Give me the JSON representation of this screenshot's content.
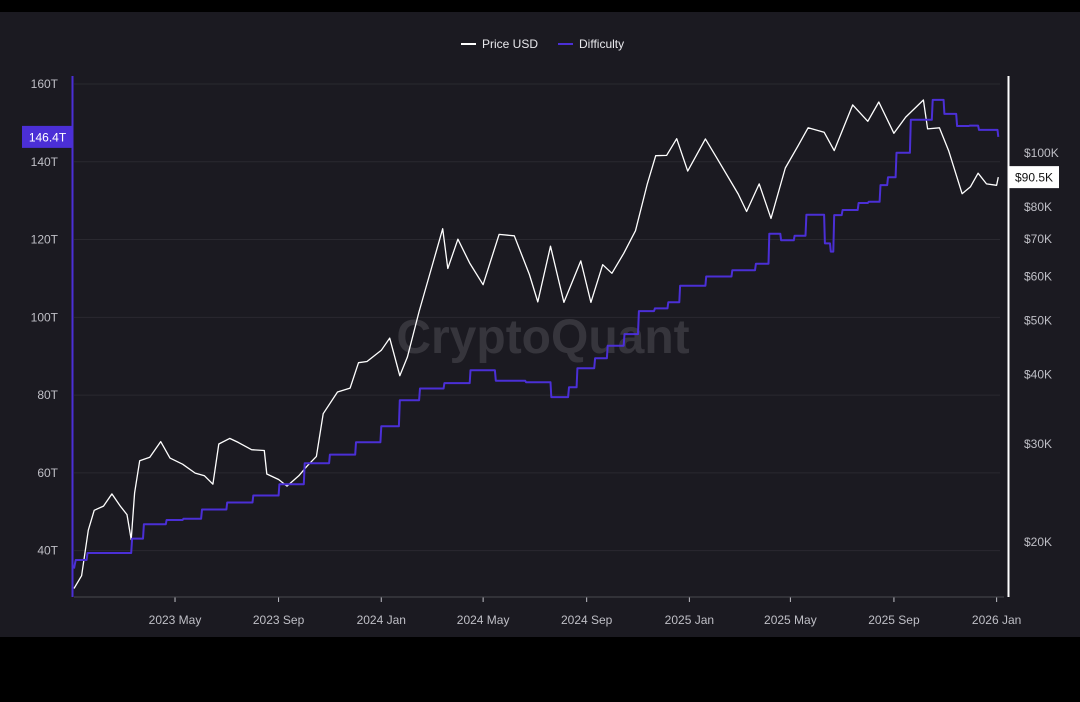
{
  "colors": {
    "background": "#1b1a21",
    "outer": "#000000",
    "price": "#ffffff",
    "difficulty": "#4b2fd6",
    "grid": "#2a2930",
    "axis_text": "#bfbfc6",
    "watermark": "#3a3940"
  },
  "watermark": "CryptoQuant",
  "chart_data": {
    "type": "line",
    "legend": {
      "position": "top-center",
      "items": [
        "Price USD",
        "Difficulty"
      ]
    },
    "x_ticks": [
      "2023 May",
      "2023 Sep",
      "2024 Jan",
      "2024 May",
      "2024 Sep",
      "2025 Jan",
      "2025 May",
      "2025 Sep",
      "2026 Jan"
    ],
    "x_tick_dates": [
      "2023-05-01",
      "2023-09-01",
      "2024-01-01",
      "2024-05-01",
      "2024-09-01",
      "2025-01-01",
      "2025-05-01",
      "2025-09-01",
      "2026-01-01"
    ],
    "x_range": [
      "2023-01-01",
      "2026-01-05"
    ],
    "left_axis": {
      "series": "Difficulty",
      "ticks": [
        "160T",
        "140T",
        "120T",
        "100T",
        "80T",
        "60T",
        "40T"
      ],
      "tick_values": [
        160,
        140,
        120,
        100,
        80,
        60,
        40
      ],
      "range": [
        30,
        162
      ],
      "unit": "T",
      "current_label": "146.4T",
      "current_value": 146.4
    },
    "right_axis": {
      "series": "Price USD",
      "scale": "log",
      "ticks": [
        "$100K",
        "$80K",
        "$70K",
        "$60K",
        "$50K",
        "$40K",
        "$30K",
        "$20K"
      ],
      "tick_values": [
        100000,
        80000,
        70000,
        60000,
        50000,
        40000,
        30000,
        20000
      ],
      "range": [
        16000,
        125000
      ],
      "current_label": "$90.5K",
      "current_value": 90500
    },
    "grid": true,
    "series": [
      {
        "name": "Price USD",
        "axis": "right",
        "points": [
          [
            "2023-01-01",
            16500
          ],
          [
            "2023-01-10",
            17400
          ],
          [
            "2023-01-18",
            21000
          ],
          [
            "2023-01-25",
            22800
          ],
          [
            "2023-02-05",
            23200
          ],
          [
            "2023-02-15",
            24400
          ],
          [
            "2023-02-25",
            23200
          ],
          [
            "2023-03-05",
            22400
          ],
          [
            "2023-03-10",
            20200
          ],
          [
            "2023-03-14",
            24500
          ],
          [
            "2023-03-20",
            28000
          ],
          [
            "2023-04-01",
            28400
          ],
          [
            "2023-04-14",
            30300
          ],
          [
            "2023-04-25",
            28300
          ],
          [
            "2023-05-10",
            27600
          ],
          [
            "2023-05-25",
            26600
          ],
          [
            "2023-06-05",
            26300
          ],
          [
            "2023-06-15",
            25400
          ],
          [
            "2023-06-22",
            30000
          ],
          [
            "2023-07-05",
            30700
          ],
          [
            "2023-07-15",
            30200
          ],
          [
            "2023-07-31",
            29300
          ],
          [
            "2023-08-15",
            29200
          ],
          [
            "2023-08-18",
            26500
          ],
          [
            "2023-09-01",
            25900
          ],
          [
            "2023-09-11",
            25200
          ],
          [
            "2023-09-25",
            26300
          ],
          [
            "2023-10-05",
            27400
          ],
          [
            "2023-10-16",
            28500
          ],
          [
            "2023-10-24",
            34000
          ],
          [
            "2023-11-10",
            37200
          ],
          [
            "2023-11-25",
            37800
          ],
          [
            "2023-12-05",
            42000
          ],
          [
            "2023-12-15",
            42200
          ],
          [
            "2024-01-01",
            44200
          ],
          [
            "2024-01-11",
            46500
          ],
          [
            "2024-01-23",
            39800
          ],
          [
            "2024-02-01",
            43000
          ],
          [
            "2024-02-15",
            51900
          ],
          [
            "2024-03-01",
            62400
          ],
          [
            "2024-03-14",
            73100
          ],
          [
            "2024-03-20",
            62000
          ],
          [
            "2024-04-01",
            70000
          ],
          [
            "2024-04-15",
            63400
          ],
          [
            "2024-05-01",
            58000
          ],
          [
            "2024-05-20",
            71400
          ],
          [
            "2024-06-07",
            71000
          ],
          [
            "2024-06-25",
            60500
          ],
          [
            "2024-07-05",
            54000
          ],
          [
            "2024-07-20",
            68000
          ],
          [
            "2024-08-05",
            53900
          ],
          [
            "2024-08-25",
            64000
          ],
          [
            "2024-09-06",
            53900
          ],
          [
            "2024-09-20",
            63000
          ],
          [
            "2024-10-01",
            60800
          ],
          [
            "2024-10-15",
            66000
          ],
          [
            "2024-10-29",
            72500
          ],
          [
            "2024-11-12",
            88000
          ],
          [
            "2024-11-22",
            98900
          ],
          [
            "2024-12-05",
            99000
          ],
          [
            "2024-12-17",
            106100
          ],
          [
            "2024-12-30",
            92800
          ],
          [
            "2025-01-20",
            106000
          ],
          [
            "2025-02-03",
            97800
          ],
          [
            "2025-02-28",
            84400
          ],
          [
            "2025-03-10",
            78500
          ],
          [
            "2025-03-25",
            88000
          ],
          [
            "2025-04-08",
            76300
          ],
          [
            "2025-04-25",
            94000
          ],
          [
            "2025-05-10",
            103000
          ],
          [
            "2025-05-22",
            111000
          ],
          [
            "2025-06-10",
            109000
          ],
          [
            "2025-06-22",
            101000
          ],
          [
            "2025-07-14",
            122000
          ],
          [
            "2025-08-01",
            114000
          ],
          [
            "2025-08-14",
            123500
          ],
          [
            "2025-09-01",
            108500
          ],
          [
            "2025-09-15",
            116000
          ],
          [
            "2025-10-06",
            124500
          ],
          [
            "2025-10-11",
            110500
          ],
          [
            "2025-10-25",
            111000
          ],
          [
            "2025-11-05",
            101000
          ],
          [
            "2025-11-21",
            84500
          ],
          [
            "2025-12-01",
            87000
          ],
          [
            "2025-12-10",
            92000
          ],
          [
            "2025-12-20",
            88000
          ],
          [
            "2026-01-01",
            87500
          ],
          [
            "2026-01-03",
            90500
          ]
        ]
      },
      {
        "name": "Difficulty",
        "axis": "left",
        "points": [
          [
            "2023-01-01",
            35.4
          ],
          [
            "2023-01-03",
            37.6
          ],
          [
            "2023-01-16",
            37.6
          ],
          [
            "2023-01-17",
            39.4
          ],
          [
            "2023-03-10",
            39.4
          ],
          [
            "2023-03-11",
            43.1
          ],
          [
            "2023-03-24",
            43.1
          ],
          [
            "2023-03-25",
            46.8
          ],
          [
            "2023-04-20",
            46.8
          ],
          [
            "2023-04-21",
            47.9
          ],
          [
            "2023-05-10",
            47.9
          ],
          [
            "2023-05-11",
            48.2
          ],
          [
            "2023-06-01",
            48.2
          ],
          [
            "2023-06-02",
            50.6
          ],
          [
            "2023-07-01",
            50.6
          ],
          [
            "2023-07-02",
            52.4
          ],
          [
            "2023-08-01",
            52.4
          ],
          [
            "2023-08-02",
            54.2
          ],
          [
            "2023-09-01",
            54.2
          ],
          [
            "2023-09-02",
            57.1
          ],
          [
            "2023-10-01",
            57.1
          ],
          [
            "2023-10-02",
            62.5
          ],
          [
            "2023-10-31",
            62.5
          ],
          [
            "2023-11-01",
            64.7
          ],
          [
            "2023-12-01",
            64.7
          ],
          [
            "2023-12-02",
            67.9
          ],
          [
            "2023-12-31",
            67.9
          ],
          [
            "2024-01-01",
            72.0
          ],
          [
            "2024-01-22",
            72.0
          ],
          [
            "2024-01-23",
            78.7
          ],
          [
            "2024-02-15",
            78.7
          ],
          [
            "2024-02-16",
            81.7
          ],
          [
            "2024-03-15",
            81.7
          ],
          [
            "2024-03-16",
            83.1
          ],
          [
            "2024-04-15",
            83.1
          ],
          [
            "2024-04-16",
            86.4
          ],
          [
            "2024-05-15",
            86.4
          ],
          [
            "2024-05-16",
            83.7
          ],
          [
            "2024-06-20",
            83.7
          ],
          [
            "2024-06-21",
            83.3
          ],
          [
            "2024-07-20",
            83.3
          ],
          [
            "2024-07-21",
            79.5
          ],
          [
            "2024-08-10",
            79.5
          ],
          [
            "2024-08-11",
            82.0
          ],
          [
            "2024-08-20",
            82.0
          ],
          [
            "2024-08-21",
            86.9
          ],
          [
            "2024-09-10",
            86.9
          ],
          [
            "2024-09-11",
            89.5
          ],
          [
            "2024-09-25",
            89.5
          ],
          [
            "2024-09-26",
            92.7
          ],
          [
            "2024-10-15",
            92.7
          ],
          [
            "2024-10-16",
            95.7
          ],
          [
            "2024-11-01",
            95.7
          ],
          [
            "2024-11-02",
            101.6
          ],
          [
            "2024-11-20",
            101.6
          ],
          [
            "2024-11-21",
            102.3
          ],
          [
            "2024-12-06",
            102.3
          ],
          [
            "2024-12-07",
            103.9
          ],
          [
            "2024-12-20",
            103.9
          ],
          [
            "2024-12-21",
            108.1
          ],
          [
            "2025-01-20",
            108.1
          ],
          [
            "2025-01-21",
            110.5
          ],
          [
            "2025-02-20",
            110.5
          ],
          [
            "2025-02-21",
            112.1
          ],
          [
            "2025-03-20",
            112.1
          ],
          [
            "2025-03-21",
            113.8
          ],
          [
            "2025-04-05",
            113.8
          ],
          [
            "2025-04-06",
            121.5
          ],
          [
            "2025-04-19",
            121.5
          ],
          [
            "2025-04-20",
            119.8
          ],
          [
            "2025-05-05",
            119.8
          ],
          [
            "2025-05-06",
            121.0
          ],
          [
            "2025-05-19",
            121.0
          ],
          [
            "2025-05-20",
            126.4
          ],
          [
            "2025-06-10",
            126.4
          ],
          [
            "2025-06-11",
            119.0
          ],
          [
            "2025-06-17",
            119.0
          ],
          [
            "2025-06-18",
            116.9
          ],
          [
            "2025-06-21",
            116.9
          ],
          [
            "2025-06-22",
            126.3
          ],
          [
            "2025-07-01",
            126.3
          ],
          [
            "2025-07-02",
            127.6
          ],
          [
            "2025-07-20",
            127.6
          ],
          [
            "2025-07-21",
            129.4
          ],
          [
            "2025-08-01",
            129.4
          ],
          [
            "2025-08-02",
            129.7
          ],
          [
            "2025-08-15",
            129.7
          ],
          [
            "2025-08-16",
            134.0
          ],
          [
            "2025-08-24",
            134.0
          ],
          [
            "2025-08-25",
            136.0
          ],
          [
            "2025-09-03",
            136.0
          ],
          [
            "2025-09-04",
            142.3
          ],
          [
            "2025-09-20",
            142.3
          ],
          [
            "2025-09-21",
            150.8
          ],
          [
            "2025-10-01",
            150.8
          ],
          [
            "2025-10-02",
            150.8
          ],
          [
            "2025-10-16",
            150.8
          ],
          [
            "2025-10-17",
            155.9
          ],
          [
            "2025-10-30",
            155.9
          ],
          [
            "2025-10-31",
            152.3
          ],
          [
            "2025-11-14",
            152.3
          ],
          [
            "2025-11-15",
            149.2
          ],
          [
            "2025-11-29",
            149.2
          ],
          [
            "2025-11-30",
            149.3
          ],
          [
            "2025-12-10",
            149.3
          ],
          [
            "2025-12-11",
            148.2
          ],
          [
            "2025-12-25",
            148.2
          ],
          [
            "2025-12-26",
            148.2
          ],
          [
            "2026-01-02",
            148.2
          ],
          [
            "2026-01-03",
            146.4
          ]
        ]
      }
    ]
  }
}
